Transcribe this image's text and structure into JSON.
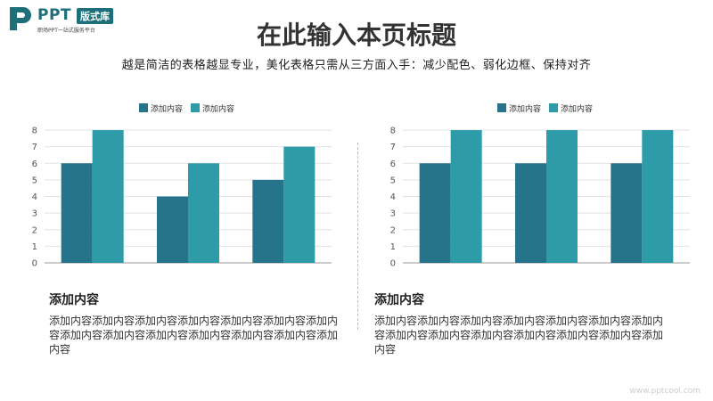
{
  "logo": {
    "name": "PPT",
    "badge": "版式库",
    "tagline": "职场PPT一站式服务平台"
  },
  "title": "在此输入本页标题",
  "subtitle": "越是简洁的表格越显专业，美化表格只需从三方面入手：减少配色、弱化边框、保持对齐",
  "colors": {
    "series1": "#26748b",
    "series2": "#2e9ba8",
    "grid": "#e3e3e3",
    "axis": "#999999",
    "tick": "#555555"
  },
  "chart_data": [
    {
      "type": "bar",
      "categories": [
        "",
        "",
        ""
      ],
      "series": [
        {
          "name": "添加内容",
          "values": [
            6,
            4,
            5
          ]
        },
        {
          "name": "添加内容",
          "values": [
            8,
            6,
            7
          ]
        }
      ],
      "ylim": [
        0,
        8
      ],
      "yticks": [
        0,
        1,
        2,
        3,
        4,
        5,
        6,
        7,
        8
      ],
      "grid": true,
      "legend": "top-center"
    },
    {
      "type": "bar",
      "categories": [
        "",
        "",
        ""
      ],
      "series": [
        {
          "name": "添加内容",
          "values": [
            6,
            6,
            6
          ]
        },
        {
          "name": "添加内容",
          "values": [
            8,
            8,
            8
          ]
        }
      ],
      "ylim": [
        0,
        8
      ],
      "yticks": [
        0,
        1,
        2,
        3,
        4,
        5,
        6,
        7,
        8
      ],
      "grid": true,
      "legend": "top-center"
    }
  ],
  "captions": [
    {
      "title": "添加内容",
      "body": "添加内容添加内容添加内容添加内容添加内容添加内容添加内容添加内容添加内容添加内容添加内容添加内容添加内容添加内容"
    },
    {
      "title": "添加内容",
      "body": "添加内容添加内容添加内容添加内容添加内容添加内容添加内容添加内容添加内容添加内容添加内容添加内容添加内容添加内容"
    }
  ],
  "watermark": "www.pptcool.com"
}
